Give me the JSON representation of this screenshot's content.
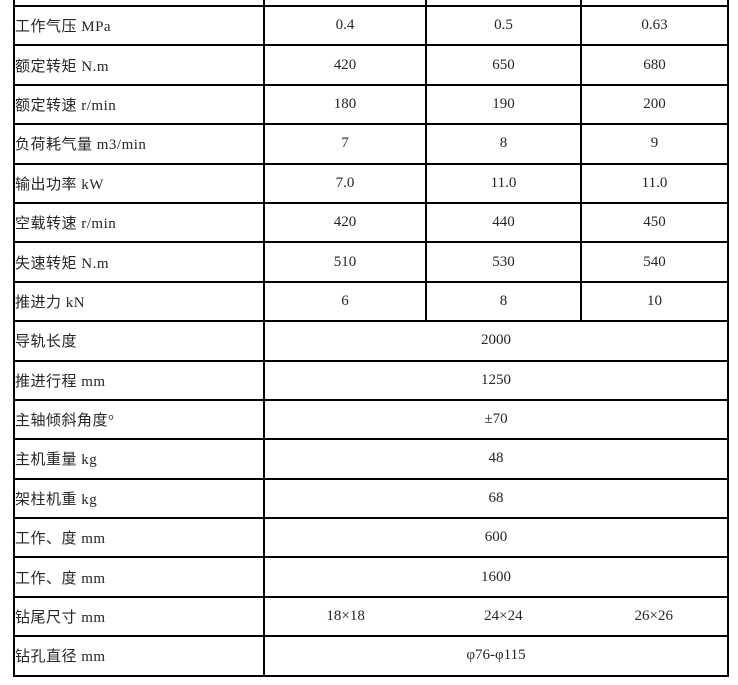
{
  "page": {
    "background_color": "#ffffff",
    "text_color": "#262626",
    "border_color": "#000000"
  },
  "table": {
    "rows": [
      {
        "type": "data",
        "label": "工作气压 MPa",
        "values": [
          "0.4",
          "0.5",
          "0.63"
        ]
      },
      {
        "type": "data",
        "label": "额定转矩 N.m",
        "values": [
          "420",
          "650",
          "680"
        ]
      },
      {
        "type": "data",
        "label": "额定转速 r/min",
        "values": [
          "180",
          "190",
          "200"
        ]
      },
      {
        "type": "data",
        "label": "负荷耗气量 m3/min",
        "values": [
          "7",
          "8",
          "9"
        ]
      },
      {
        "type": "data",
        "label": "输出功率 kW",
        "values": [
          "7.0",
          "11.0",
          "11.0"
        ]
      },
      {
        "type": "data",
        "label": "空载转速 r/min",
        "values": [
          "420",
          "440",
          "450"
        ]
      },
      {
        "type": "data",
        "label": "失速转矩 N.m",
        "values": [
          "510",
          "530",
          "540"
        ]
      },
      {
        "type": "data",
        "label": "推进力 kN",
        "values": [
          "6",
          "8",
          "10"
        ]
      },
      {
        "type": "merged",
        "label": "导轨长度",
        "value": "2000"
      },
      {
        "type": "merged",
        "label": "推进行程 mm",
        "value": "1250"
      },
      {
        "type": "merged",
        "label": "主轴倾斜角度°",
        "value": "±70"
      },
      {
        "type": "merged",
        "label": "主机重量 kg",
        "value": "48"
      },
      {
        "type": "merged",
        "label": "架柱机重 kg",
        "value": "68"
      },
      {
        "type": "merged",
        "label": "工作、度 mm",
        "value": "600"
      },
      {
        "type": "merged",
        "label": "工作、度 mm",
        "value": "1600"
      },
      {
        "type": "triple",
        "label": "钻尾尺寸 mm",
        "values": [
          "18×18",
          "24×24",
          "26×26"
        ]
      },
      {
        "type": "merged",
        "label": "钻孔直径 mm",
        "value": "φ76-φ115"
      }
    ]
  }
}
